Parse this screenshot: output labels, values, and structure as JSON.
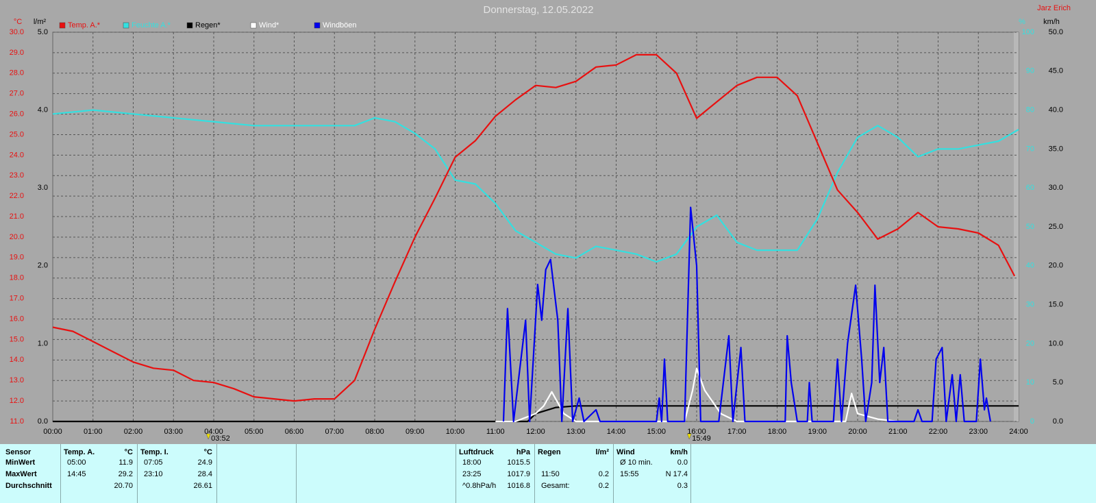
{
  "chart_data": {
    "type": "line",
    "title": "Donnerstag, 12.05.2022",
    "credit": "Jarz Erich",
    "xlim": [
      0,
      24
    ],
    "xticks": [
      {
        "value": 0,
        "label": "00:00"
      },
      {
        "value": 1,
        "label": "01:00"
      },
      {
        "value": 2,
        "label": "02:00"
      },
      {
        "value": 3,
        "label": "03:00"
      },
      {
        "value": 4,
        "label": "04:00"
      },
      {
        "value": 5,
        "label": "05:00"
      },
      {
        "value": 6,
        "label": "06:00"
      },
      {
        "value": 7,
        "label": "07:00"
      },
      {
        "value": 8,
        "label": "08:00"
      },
      {
        "value": 9,
        "label": "09:00"
      },
      {
        "value": 10,
        "label": "10:00"
      },
      {
        "value": 11,
        "label": "11:00"
      },
      {
        "value": 12,
        "label": "12:00"
      },
      {
        "value": 13,
        "label": "13:00"
      },
      {
        "value": 14,
        "label": "14:00"
      },
      {
        "value": 15,
        "label": "15:00"
      },
      {
        "value": 16,
        "label": "16:00"
      },
      {
        "value": 17,
        "label": "17:00"
      },
      {
        "value": 18,
        "label": "18:00"
      },
      {
        "value": 19,
        "label": "19:00"
      },
      {
        "value": 20,
        "label": "20:00"
      },
      {
        "value": 21,
        "label": "21:00"
      },
      {
        "value": 22,
        "label": "22:00"
      },
      {
        "value": 23,
        "label": "23:00"
      },
      {
        "value": 24,
        "label": "24:00"
      }
    ],
    "y_unit": "°C",
    "ylim": [
      11,
      30
    ],
    "yticks": [
      {
        "value": 11,
        "label": "11.0"
      },
      {
        "value": 12,
        "label": "12.0"
      },
      {
        "value": 13,
        "label": "13.0"
      },
      {
        "value": 14,
        "label": "14.0"
      },
      {
        "value": 15,
        "label": "15.0"
      },
      {
        "value": 16,
        "label": "16.0"
      },
      {
        "value": 17,
        "label": "17.0"
      },
      {
        "value": 18,
        "label": "18.0"
      },
      {
        "value": 19,
        "label": "19.0"
      },
      {
        "value": 20,
        "label": "20.0"
      },
      {
        "value": 21,
        "label": "21.0"
      },
      {
        "value": 22,
        "label": "22.0"
      },
      {
        "value": 23,
        "label": "23.0"
      },
      {
        "value": 24,
        "label": "24.0"
      },
      {
        "value": 25,
        "label": "25.0"
      },
      {
        "value": 26,
        "label": "26.0"
      },
      {
        "value": 27,
        "label": "27.0"
      },
      {
        "value": 28,
        "label": "28.0"
      },
      {
        "value": 29,
        "label": "29.0"
      },
      {
        "value": 30,
        "label": "30.0"
      }
    ],
    "y2_unit": "l/m²",
    "y2lim": [
      0,
      5
    ],
    "y2ticks": [
      {
        "value": 0,
        "label": "0.0"
      },
      {
        "value": 1,
        "label": "1.0"
      },
      {
        "value": 2,
        "label": "2.0"
      },
      {
        "value": 3,
        "label": "3.0"
      },
      {
        "value": 4,
        "label": "4.0"
      },
      {
        "value": 5,
        "label": "5.0"
      }
    ],
    "y3_unit": "%",
    "y3lim": [
      0,
      100
    ],
    "y3ticks": [
      0,
      10,
      20,
      30,
      40,
      50,
      60,
      70,
      80,
      90,
      100
    ],
    "y4_unit": "km/h",
    "y4lim": [
      0,
      50
    ],
    "y4ticks": [
      {
        "value": 0,
        "label": "0.0"
      },
      {
        "value": 5,
        "label": "5.0"
      },
      {
        "value": 10,
        "label": "10.0"
      },
      {
        "value": 15,
        "label": "15.0"
      },
      {
        "value": 20,
        "label": "20.0"
      },
      {
        "value": 25,
        "label": "25.0"
      },
      {
        "value": 30,
        "label": "30.0"
      },
      {
        "value": 35,
        "label": "35.0"
      },
      {
        "value": 40,
        "label": "40.0"
      },
      {
        "value": 45,
        "label": "45.0"
      },
      {
        "value": 50,
        "label": "50.0"
      }
    ],
    "grid": true,
    "markers": [
      {
        "x": 3.8667,
        "label": "03:52"
      },
      {
        "x": 15.8167,
        "label": "15:49"
      }
    ],
    "series": [
      {
        "name": "Feuchte A.*",
        "color": "#33e0e0",
        "axis": "y3",
        "x": [
          0,
          1,
          2,
          3,
          4,
          5,
          6,
          7,
          7.5,
          8,
          8.5,
          9,
          9.5,
          10,
          10.5,
          11,
          11.5,
          12,
          12.5,
          13,
          13.5,
          14,
          14.5,
          15,
          15.5,
          16,
          16.5,
          17,
          17.5,
          18,
          18.5,
          19,
          19.5,
          20,
          20.5,
          21,
          21.5,
          22,
          22.5,
          23,
          23.5,
          24
        ],
        "values": [
          79,
          80,
          79,
          78,
          77,
          76,
          76,
          76,
          76,
          78,
          77,
          74,
          70,
          62,
          61,
          56,
          49,
          46,
          43,
          42,
          45,
          44,
          43,
          41,
          43,
          50,
          53,
          46,
          44,
          44,
          44,
          52,
          64,
          73,
          76,
          73,
          68,
          70,
          70,
          71,
          72,
          75
        ]
      },
      {
        "name": "Temp. A.*",
        "color": "#e81010",
        "axis": "y",
        "x": [
          0,
          0.5,
          1,
          1.5,
          2,
          2.5,
          3,
          3.5,
          4,
          4.5,
          5,
          5.5,
          6,
          6.5,
          7,
          7.5,
          8,
          8.5,
          9,
          9.5,
          10,
          10.5,
          11,
          11.5,
          12,
          12.5,
          13,
          13.5,
          14,
          14.5,
          15,
          15.5,
          16,
          16.5,
          17,
          17.5,
          18,
          18.5,
          19,
          19.5,
          20,
          20.5,
          21,
          21.5,
          22,
          22.5,
          23,
          23.5,
          23.9
        ],
        "values": [
          15.6,
          15.4,
          14.9,
          14.4,
          13.9,
          13.6,
          13.5,
          13.0,
          12.9,
          12.6,
          12.2,
          12.1,
          12.0,
          12.1,
          12.1,
          13.0,
          15.5,
          17.8,
          20.0,
          21.9,
          23.9,
          24.7,
          25.9,
          26.7,
          27.4,
          27.3,
          27.6,
          28.3,
          28.4,
          28.9,
          28.9,
          28.0,
          25.8,
          26.6,
          27.4,
          27.8,
          27.8,
          26.9,
          24.6,
          22.3,
          21.2,
          19.9,
          20.4,
          21.2,
          20.5,
          20.4,
          20.2,
          19.6,
          18.1
        ]
      },
      {
        "name": "Regen*",
        "color": "#000000",
        "axis": "y2",
        "x": [
          0,
          11.8,
          12.0,
          12.5,
          13.0,
          24
        ],
        "values": [
          0,
          0,
          0.1,
          0.18,
          0.2,
          0.2
        ]
      },
      {
        "name": "Wind*",
        "color": "#ffffff",
        "axis": "y4",
        "x": [
          11,
          11.5,
          12.0,
          12.2,
          12.4,
          12.7,
          13.0,
          15.7,
          15.9,
          16.0,
          16.2,
          16.6,
          17.0,
          19.7,
          19.85,
          20.0,
          20.5,
          21
        ],
        "values": [
          0,
          0,
          1,
          2,
          3.8,
          1,
          0,
          0,
          4,
          6.8,
          4,
          1,
          0,
          0,
          3.6,
          1,
          0.3,
          0
        ]
      },
      {
        "name": "Windböen",
        "color": "#0000ee",
        "axis": "y4",
        "x": [
          11.2,
          11.3,
          11.45,
          11.75,
          11.85,
          12.05,
          12.15,
          12.25,
          12.37,
          12.55,
          12.65,
          12.8,
          12.92,
          13.08,
          13.2,
          13.5,
          13.6,
          15.0,
          15.07,
          15.13,
          15.2,
          15.28,
          15.7,
          15.85,
          16.0,
          16.1,
          16.55,
          16.8,
          16.9,
          17.1,
          17.2,
          18.2,
          18.25,
          18.35,
          18.5,
          18.75,
          18.8,
          18.87,
          19.4,
          19.5,
          19.6,
          19.75,
          19.95,
          20.1,
          20.2,
          20.35,
          20.43,
          20.55,
          20.65,
          20.75,
          21.4,
          21.5,
          21.6,
          21.85,
          21.95,
          22.1,
          22.2,
          22.35,
          22.45,
          22.55,
          22.65,
          22.95,
          23.05,
          23.15,
          23.2,
          23.3
        ],
        "values": [
          0,
          14.5,
          0,
          13,
          0,
          17.6,
          13,
          19.5,
          20.8,
          13,
          0,
          14.5,
          0,
          3,
          0,
          1.5,
          0,
          0,
          3,
          0,
          8,
          0,
          0,
          27.5,
          20,
          0,
          0,
          11,
          0,
          9.5,
          0,
          0,
          11,
          5,
          0,
          0,
          5,
          0,
          0,
          8,
          0,
          10,
          17.5,
          8,
          0,
          5,
          17.5,
          5,
          9.5,
          0,
          0,
          1.5,
          0,
          0,
          8,
          9.5,
          0,
          6,
          0,
          6,
          0,
          0,
          8,
          1.5,
          3,
          0
        ]
      }
    ],
    "legend_order": [
      1,
      0,
      2,
      3,
      4
    ]
  },
  "stats": {
    "labels": [
      "Sensor",
      "MinWert",
      "MaxWert",
      "Durchschnitt"
    ],
    "columns": [
      {
        "title": "Temp. A.",
        "unit": "°C",
        "rows": [
          {
            "time": "05:00",
            "value": "11.9"
          },
          {
            "time": "14:45",
            "value": "29.2"
          },
          {
            "value": "20.70"
          }
        ]
      },
      {
        "title": "Temp. I.",
        "unit": "°C",
        "rows": [
          {
            "time": "07:05",
            "value": "24.9"
          },
          {
            "time": "23:10",
            "value": "28.4"
          },
          {
            "value": "26.61"
          }
        ]
      },
      {
        "title": "Luftdruck",
        "unit": "hPa",
        "rows": [
          {
            "time": "18:00",
            "value": "1015.5"
          },
          {
            "time": "23:25",
            "value": "1017.9"
          },
          {
            "time": "^0.8hPa/h",
            "value": "1016.8"
          }
        ]
      },
      {
        "title": "Regen",
        "unit": "l/m²",
        "rows": [
          null,
          {
            "time": "11:50",
            "value": "0.2"
          },
          {
            "time": "Gesamt:",
            "value": "0.2"
          }
        ]
      },
      {
        "title": "Wind",
        "unit": "km/h",
        "rows": [
          {
            "time": "Ø 10 min.",
            "value": "0.0"
          },
          {
            "time": "15:55",
            "value": "N 17.4"
          },
          {
            "value": "0.3"
          }
        ]
      }
    ]
  }
}
